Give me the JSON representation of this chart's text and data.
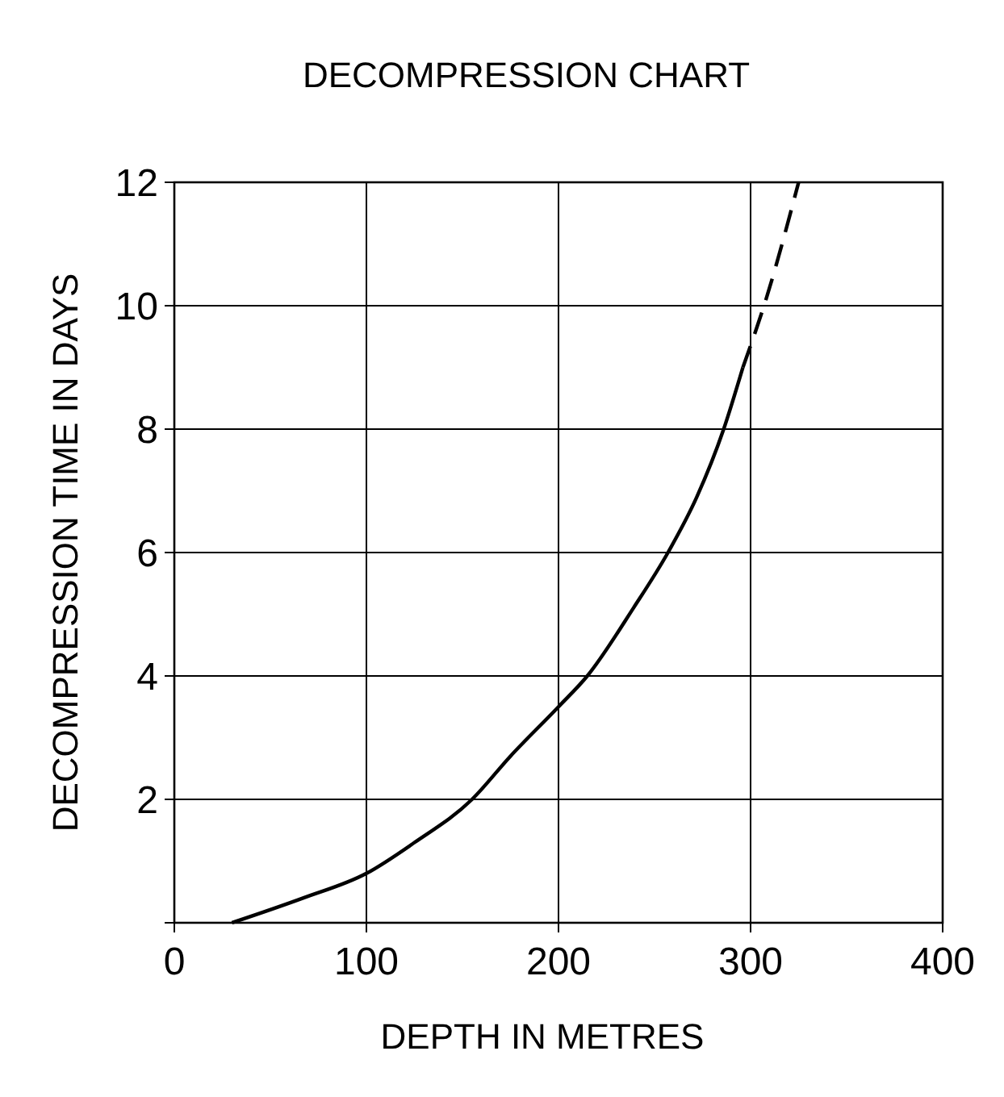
{
  "chart_data": {
    "type": "line",
    "title": "DECOMPRESSION CHART",
    "xlabel": "DEPTH IN METRES",
    "ylabel": "DECOMPRESSION TIME IN DAYS",
    "xlim": [
      0,
      400
    ],
    "xticks": [
      0,
      100,
      200,
      300,
      400
    ],
    "ylim": [
      0,
      12
    ],
    "yticks": [
      {
        "value": 0,
        "label": null
      },
      2,
      4,
      6,
      8,
      10,
      12
    ],
    "grid": true,
    "series": [
      {
        "color": "#000000",
        "line_style": "solid",
        "x": [
          30,
          67,
          100,
          125,
          155,
          175,
          200,
          215,
          239,
          257,
          272,
          286,
          296
        ],
        "values": [
          0,
          0.4,
          0.8,
          1.3,
          2,
          2.7,
          3.5,
          4,
          5.1,
          6,
          6.9,
          8,
          9
        ]
      },
      {
        "color": "#000000",
        "line_style": "dashed",
        "x": [
          296,
          308,
          325
        ],
        "values": [
          9,
          10.1,
          12
        ]
      }
    ]
  }
}
